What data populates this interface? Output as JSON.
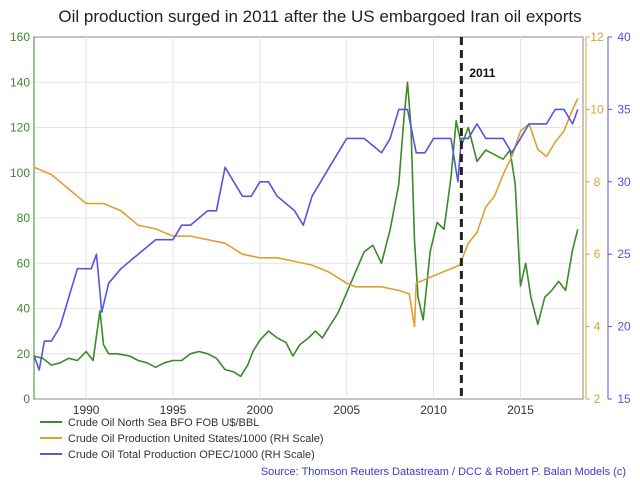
{
  "chart_data": {
    "type": "line",
    "title": "Oil production surged in 2011 after the US embargoed Iran oil exports",
    "source": "Source: Thomson Reuters Datastream / DCC & Robert P. Balan Models (c)",
    "xlim": [
      1987,
      2018.6
    ],
    "x_ticks": [
      1990,
      1995,
      2000,
      2005,
      2010,
      2015
    ],
    "axes": {
      "left": {
        "ylim": [
          0,
          160
        ],
        "ticks": [
          0,
          20,
          40,
          60,
          80,
          100,
          120,
          140,
          160
        ],
        "color": "#3a8a2a"
      },
      "right1": {
        "ylim": [
          2,
          12
        ],
        "ticks": [
          2,
          4,
          6,
          8,
          10,
          12
        ],
        "color": "#e0a030"
      },
      "right2": {
        "ylim": [
          15,
          40
        ],
        "ticks": [
          15,
          20,
          25,
          30,
          35,
          40
        ],
        "color": "#5555dd"
      }
    },
    "annotation": {
      "x": 2011.6,
      "label": "2011"
    },
    "series": [
      {
        "name": "Crude Oil North Sea BFO FOB U$/BBL",
        "axis": "left",
        "color": "#3a8a2a",
        "x": [
          1987.0,
          1987.5,
          1988.0,
          1988.5,
          1989.0,
          1989.5,
          1990.0,
          1990.4,
          1990.6,
          1990.8,
          1991.0,
          1991.3,
          1991.8,
          1992.5,
          1993.0,
          1993.5,
          1994.0,
          1994.5,
          1995.0,
          1995.5,
          1996.0,
          1996.5,
          1997.0,
          1997.5,
          1998.0,
          1998.5,
          1998.9,
          1999.3,
          1999.6,
          2000.0,
          2000.5,
          2001.0,
          2001.5,
          2001.9,
          2002.3,
          2002.8,
          2003.2,
          2003.6,
          2004.0,
          2004.5,
          2005.0,
          2005.5,
          2006.0,
          2006.5,
          2007.0,
          2007.5,
          2008.0,
          2008.3,
          2008.5,
          2008.7,
          2008.9,
          2009.1,
          2009.4,
          2009.8,
          2010.2,
          2010.6,
          2011.0,
          2011.3,
          2011.6,
          2012.0,
          2012.5,
          2013.0,
          2013.5,
          2014.0,
          2014.4,
          2014.7,
          2015.0,
          2015.3,
          2015.6,
          2016.0,
          2016.4,
          2016.8,
          2017.2,
          2017.6,
          2018.0,
          2018.3
        ],
        "values": [
          19,
          18,
          15,
          16,
          18,
          17,
          21,
          17,
          28,
          39,
          24,
          20,
          20,
          19,
          17,
          16,
          14,
          16,
          17,
          17,
          20,
          21,
          20,
          18,
          13,
          12,
          10,
          15,
          21,
          26,
          30,
          27,
          25,
          19,
          24,
          27,
          30,
          27,
          32,
          38,
          47,
          56,
          65,
          68,
          60,
          75,
          95,
          125,
          140,
          120,
          70,
          45,
          35,
          65,
          78,
          75,
          98,
          123,
          112,
          120,
          105,
          110,
          108,
          106,
          110,
          95,
          50,
          60,
          45,
          33,
          45,
          48,
          52,
          48,
          66,
          75
        ]
      },
      {
        "name": "Crude Oil Production United States/1000 (RH Scale)",
        "axis": "right1",
        "color": "#e0a030",
        "x": [
          1987.0,
          1988.0,
          1989.0,
          1990.0,
          1991.0,
          1992.0,
          1993.0,
          1994.0,
          1995.0,
          1996.0,
          1997.0,
          1998.0,
          1999.0,
          2000.0,
          2001.0,
          2002.0,
          2003.0,
          2004.0,
          2005.0,
          2005.5,
          2006.0,
          2007.0,
          2008.0,
          2008.6,
          2008.9,
          2009.0,
          2009.5,
          2010.0,
          2010.5,
          2011.0,
          2011.5,
          2012.0,
          2012.5,
          2013.0,
          2013.5,
          2014.0,
          2014.5,
          2015.0,
          2015.5,
          2016.0,
          2016.5,
          2017.0,
          2017.5,
          2018.0,
          2018.3
        ],
        "values": [
          8.4,
          8.2,
          7.8,
          7.4,
          7.4,
          7.2,
          6.8,
          6.7,
          6.5,
          6.5,
          6.4,
          6.3,
          6.0,
          5.9,
          5.9,
          5.8,
          5.7,
          5.5,
          5.2,
          5.1,
          5.1,
          5.1,
          5.0,
          4.9,
          4.0,
          5.2,
          5.3,
          5.4,
          5.5,
          5.6,
          5.7,
          6.3,
          6.6,
          7.3,
          7.6,
          8.2,
          8.7,
          9.4,
          9.6,
          8.9,
          8.7,
          9.1,
          9.4,
          10.0,
          10.3
        ]
      },
      {
        "name": "Crude Oil Total Production OPEC/1000 (RH Scale)",
        "axis": "right2",
        "color": "#5555dd",
        "x": [
          1987.0,
          1987.3,
          1987.6,
          1988.0,
          1988.5,
          1989.0,
          1989.5,
          1990.0,
          1990.3,
          1990.6,
          1990.9,
          1991.3,
          1992.0,
          1993.0,
          1994.0,
          1995.0,
          1995.5,
          1996.0,
          1997.0,
          1997.5,
          1998.0,
          1998.5,
          1999.0,
          1999.5,
          2000.0,
          2000.5,
          2001.0,
          2002.0,
          2002.5,
          2003.0,
          2003.5,
          2004.0,
          2005.0,
          2006.0,
          2007.0,
          2007.5,
          2008.0,
          2008.5,
          2009.0,
          2009.5,
          2010.0,
          2011.0,
          2011.4,
          2011.6,
          2012.0,
          2012.5,
          2013.0,
          2014.0,
          2014.5,
          2015.0,
          2015.5,
          2016.0,
          2016.5,
          2017.0,
          2017.5,
          2018.0,
          2018.3
        ],
        "values": [
          18,
          17,
          19,
          19,
          20,
          22,
          24,
          24,
          24,
          25,
          21,
          23,
          24,
          25,
          26,
          26,
          27,
          27,
          28,
          28,
          31,
          30,
          29,
          29,
          30,
          30,
          29,
          28,
          27,
          29,
          30,
          31,
          33,
          33,
          32,
          33,
          35,
          35,
          32,
          32,
          33,
          33,
          30,
          33,
          33,
          34,
          33,
          33,
          32,
          33,
          34,
          34,
          34,
          35,
          35,
          34,
          35
        ]
      }
    ]
  }
}
